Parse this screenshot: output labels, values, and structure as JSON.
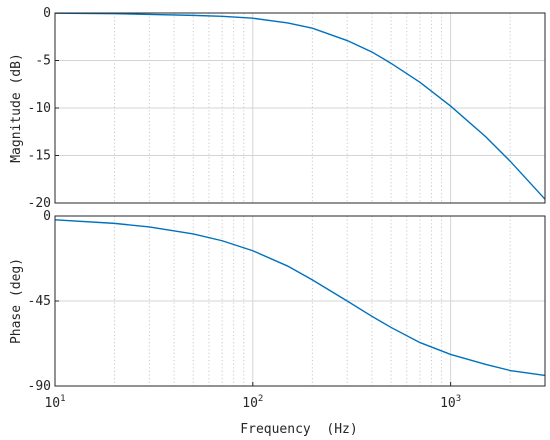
{
  "chart_data": [
    {
      "type": "line",
      "panel": "magnitude",
      "ylabel": "Magnitude (dB)",
      "xlabel": "",
      "xscale": "log",
      "xlim": [
        10,
        3000
      ],
      "ylim": [
        -20,
        0
      ],
      "yticks": [
        0,
        -5,
        -10,
        -15,
        -20
      ],
      "ytick_labels": [
        "0",
        "-5",
        "-10",
        "-15",
        "-20"
      ],
      "grid": true,
      "line_color": "#0072BD",
      "series": [
        {
          "x": [
            10,
            20,
            30,
            50,
            70,
            100,
            150,
            200,
            300,
            400,
            500,
            700,
            1000,
            1500,
            2000,
            3000
          ],
          "values": [
            -0.02,
            -0.07,
            -0.15,
            -0.25,
            -0.35,
            -0.55,
            -1.05,
            -1.6,
            -2.9,
            -4.1,
            -5.3,
            -7.3,
            -9.8,
            -13.0,
            -15.6,
            -19.6
          ]
        }
      ]
    },
    {
      "type": "line",
      "panel": "phase",
      "ylabel": "Phase (deg)",
      "xlabel": "Frequency  (Hz)",
      "xscale": "log",
      "xlim": [
        10,
        3000
      ],
      "ylim": [
        -90,
        0
      ],
      "yticks": [
        0,
        -45,
        -90
      ],
      "ytick_labels": [
        "0",
        "-45",
        "-90"
      ],
      "xticks": [
        10,
        100,
        1000
      ],
      "xtick_labels": [
        {
          "base": "10",
          "exp": "1"
        },
        {
          "base": "10",
          "exp": "2"
        },
        {
          "base": "10",
          "exp": "3"
        }
      ],
      "grid": true,
      "line_color": "#0072BD",
      "series": [
        {
          "x": [
            10,
            20,
            30,
            50,
            70,
            100,
            150,
            200,
            300,
            400,
            500,
            700,
            1000,
            1500,
            2000,
            3000
          ],
          "values": [
            -2.0,
            -3.9,
            -5.8,
            -9.5,
            -13.1,
            -18.4,
            -26.5,
            -33.8,
            -45.0,
            -53.1,
            -59.0,
            -67.0,
            -73.3,
            -78.5,
            -81.8,
            -84.4
          ]
        }
      ]
    }
  ]
}
